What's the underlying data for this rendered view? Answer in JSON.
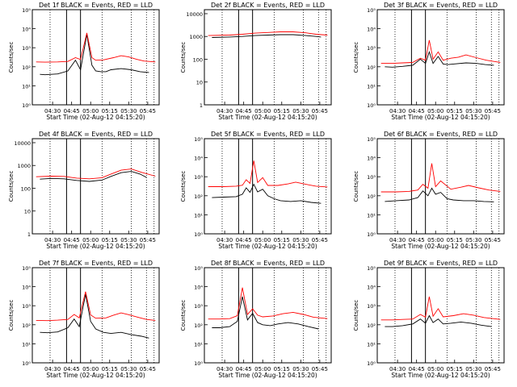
{
  "chart_data": [
    {
      "type": "line",
      "title": "Det 1f BLACK = Events, RED = LLD",
      "xlabel": "Start Time (02-Aug-12 04:15:20)",
      "ylabel": "Counts/sec",
      "scale": "log",
      "ylim": [
        1,
        100000
      ],
      "yticks": [
        "10⁰",
        "10¹",
        "10²",
        "10³",
        "10⁴",
        "10⁵"
      ],
      "xticks": [
        "04:30",
        "04:45",
        "05:00",
        "05:15",
        "05:30",
        "05:45"
      ],
      "series": [
        {
          "color": "#000000",
          "x": [
            0.06,
            0.1,
            0.2,
            0.28,
            0.34,
            0.38,
            0.43,
            0.47,
            0.5,
            0.54,
            0.58,
            0.62,
            0.7,
            0.78,
            0.85,
            0.92
          ],
          "values": [
            40,
            38,
            42,
            60,
            220,
            70,
            5000,
            120,
            60,
            55,
            55,
            70,
            80,
            70,
            55,
            50
          ]
        },
        {
          "color": "#ff0000",
          "x": [
            0.03,
            0.1,
            0.2,
            0.28,
            0.34,
            0.38,
            0.43,
            0.47,
            0.5,
            0.56,
            0.64,
            0.7,
            0.76,
            0.82,
            0.88,
            0.97
          ],
          "values": [
            180,
            175,
            180,
            190,
            300,
            240,
            6000,
            300,
            220,
            230,
            300,
            380,
            330,
            250,
            200,
            180
          ]
        }
      ]
    },
    {
      "type": "line",
      "title": "Det 2f BLACK = Events, RED = LLD",
      "xlabel": "Start Time (02-Aug-12 04:15:20)",
      "ylabel": "Counts/sec",
      "scale": "log",
      "ylim": [
        1,
        15000
      ],
      "yticks": [
        "1",
        "10",
        "100",
        "1000",
        "10000"
      ],
      "xticks": [
        "04:30",
        "04:45",
        "05:00",
        "05:15",
        "05:30",
        "05:45"
      ],
      "series": [
        {
          "color": "#000000",
          "x": [
            0.06,
            0.2,
            0.3,
            0.4,
            0.5,
            0.6,
            0.7,
            0.8,
            0.88,
            0.92
          ],
          "values": [
            900,
            950,
            1000,
            1100,
            1150,
            1200,
            1200,
            1100,
            1000,
            950
          ]
        },
        {
          "color": "#ff0000",
          "x": [
            0.03,
            0.2,
            0.3,
            0.4,
            0.5,
            0.6,
            0.7,
            0.8,
            0.88,
            0.97
          ],
          "values": [
            1100,
            1150,
            1250,
            1400,
            1500,
            1600,
            1600,
            1450,
            1250,
            1150
          ]
        }
      ]
    },
    {
      "type": "line",
      "title": "Det 3f BLACK = Events, RED = LLD",
      "xlabel": "Start Time (02-Aug-12 04:15:20)",
      "ylabel": "Counts/sec",
      "scale": "log",
      "ylim": [
        1,
        100000
      ],
      "yticks": [
        "10⁰",
        "10¹",
        "10²",
        "10³",
        "10⁴",
        "10⁵"
      ],
      "xticks": [
        "04:30",
        "04:45",
        "05:00",
        "05:15",
        "05:30",
        "05:45"
      ],
      "series": [
        {
          "color": "#000000",
          "x": [
            0.06,
            0.12,
            0.2,
            0.28,
            0.34,
            0.38,
            0.41,
            0.44,
            0.48,
            0.52,
            0.56,
            0.6,
            0.7,
            0.78,
            0.85,
            0.92
          ],
          "values": [
            100,
            95,
            105,
            120,
            250,
            150,
            600,
            150,
            350,
            140,
            130,
            140,
            160,
            150,
            130,
            120
          ]
        },
        {
          "color": "#ff0000",
          "x": [
            0.03,
            0.12,
            0.2,
            0.28,
            0.34,
            0.38,
            0.41,
            0.44,
            0.48,
            0.52,
            0.58,
            0.64,
            0.7,
            0.78,
            0.86,
            0.97
          ],
          "values": [
            150,
            150,
            160,
            170,
            280,
            220,
            2500,
            250,
            600,
            220,
            280,
            320,
            420,
            300,
            220,
            170
          ]
        }
      ]
    },
    {
      "type": "line",
      "title": "Det 4f BLACK = Events, RED = LLD",
      "xlabel": "Start Time (02-Aug-12 04:15:20)",
      "ylabel": "Counts/sec",
      "scale": "log",
      "ylim": [
        1,
        15000
      ],
      "yticks": [
        "1",
        "10",
        "100",
        "1000",
        "10000"
      ],
      "xticks": [
        "04:30",
        "04:45",
        "05:00",
        "05:15",
        "05:30",
        "05:45"
      ],
      "series": [
        {
          "color": "#000000",
          "x": [
            0.06,
            0.15,
            0.25,
            0.35,
            0.45,
            0.55,
            0.62,
            0.7,
            0.78,
            0.85,
            0.9
          ],
          "values": [
            250,
            270,
            260,
            220,
            200,
            230,
            330,
            480,
            550,
            420,
            300
          ]
        },
        {
          "color": "#ff0000",
          "x": [
            0.03,
            0.15,
            0.25,
            0.35,
            0.45,
            0.55,
            0.62,
            0.7,
            0.78,
            0.86,
            0.97
          ],
          "values": [
            320,
            340,
            330,
            280,
            260,
            290,
            420,
            620,
            700,
            500,
            340
          ]
        }
      ]
    },
    {
      "type": "line",
      "title": "Det 5f BLACK = Events, RED = LLD",
      "xlabel": "Start Time (02-Aug-12 04:15:20)",
      "ylabel": "Counts/sec",
      "scale": "log",
      "ylim": [
        1,
        100000
      ],
      "yticks": [
        "10⁰",
        "10¹",
        "10²",
        "10³",
        "10⁴",
        "10⁵"
      ],
      "xticks": [
        "04:30",
        "04:45",
        "05:00",
        "05:15",
        "05:30",
        "05:45"
      ],
      "series": [
        {
          "color": "#000000",
          "x": [
            0.06,
            0.15,
            0.25,
            0.3,
            0.33,
            0.36,
            0.39,
            0.42,
            0.46,
            0.5,
            0.55,
            0.6,
            0.68,
            0.76,
            0.84,
            0.92
          ],
          "values": [
            80,
            85,
            90,
            120,
            260,
            150,
            400,
            160,
            220,
            100,
            70,
            55,
            50,
            55,
            45,
            40
          ]
        },
        {
          "color": "#ff0000",
          "x": [
            0.03,
            0.15,
            0.25,
            0.3,
            0.33,
            0.36,
            0.39,
            0.42,
            0.46,
            0.5,
            0.58,
            0.66,
            0.72,
            0.8,
            0.88,
            0.97
          ],
          "values": [
            300,
            300,
            320,
            360,
            700,
            450,
            7000,
            500,
            900,
            350,
            350,
            420,
            520,
            400,
            320,
            290
          ]
        }
      ]
    },
    {
      "type": "line",
      "title": "Det 6f BLACK = Events, RED = LLD",
      "xlabel": "Start Time (02-Aug-12 04:15:20)",
      "ylabel": "Counts/sec",
      "scale": "log",
      "ylim": [
        1,
        100000
      ],
      "yticks": [
        "10⁰",
        "10¹",
        "10²",
        "10³",
        "10⁴",
        "10⁵"
      ],
      "xticks": [
        "04:30",
        "04:45",
        "05:00",
        "05:15",
        "05:30",
        "05:45"
      ],
      "series": [
        {
          "color": "#000000",
          "x": [
            0.06,
            0.15,
            0.25,
            0.32,
            0.36,
            0.4,
            0.43,
            0.46,
            0.5,
            0.55,
            0.6,
            0.68,
            0.76,
            0.84,
            0.92
          ],
          "values": [
            50,
            55,
            60,
            80,
            180,
            100,
            250,
            120,
            150,
            70,
            60,
            55,
            55,
            50,
            48
          ]
        },
        {
          "color": "#ff0000",
          "x": [
            0.03,
            0.15,
            0.25,
            0.32,
            0.36,
            0.4,
            0.43,
            0.46,
            0.5,
            0.58,
            0.66,
            0.72,
            0.8,
            0.88,
            0.97
          ],
          "values": [
            160,
            160,
            170,
            200,
            400,
            250,
            5000,
            300,
            600,
            220,
            280,
            350,
            260,
            200,
            170
          ]
        }
      ]
    },
    {
      "type": "line",
      "title": "Det 7f BLACK = Events, RED = LLD",
      "xlabel": "Start Time (02-Aug-12 04:15:20)",
      "ylabel": "Counts/sec",
      "scale": "log",
      "ylim": [
        1,
        100000
      ],
      "yticks": [
        "10⁰",
        "10¹",
        "10²",
        "10³",
        "10⁴",
        "10⁵"
      ],
      "xticks": [
        "04:30",
        "04:45",
        "05:00",
        "05:15",
        "05:30",
        "05:45"
      ],
      "series": [
        {
          "color": "#000000",
          "x": [
            0.06,
            0.12,
            0.2,
            0.28,
            0.33,
            0.37,
            0.42,
            0.46,
            0.5,
            0.56,
            0.62,
            0.7,
            0.78,
            0.86,
            0.92
          ],
          "values": [
            40,
            38,
            42,
            70,
            200,
            80,
            4000,
            150,
            60,
            40,
            35,
            40,
            30,
            25,
            20
          ]
        },
        {
          "color": "#ff0000",
          "x": [
            0.03,
            0.12,
            0.2,
            0.28,
            0.33,
            0.37,
            0.42,
            0.46,
            0.5,
            0.58,
            0.64,
            0.7,
            0.76,
            0.84,
            0.9,
            0.97
          ],
          "values": [
            170,
            165,
            175,
            190,
            350,
            230,
            5500,
            330,
            220,
            230,
            320,
            420,
            340,
            240,
            190,
            170
          ]
        }
      ]
    },
    {
      "type": "line",
      "title": "Det 8f BLACK = Events, RED = LLD",
      "xlabel": "Start Time (02-Aug-12 04:15:20)",
      "ylabel": "Counts/sec",
      "scale": "log",
      "ylim": [
        1,
        100000
      ],
      "yticks": [
        "10⁰",
        "10¹",
        "10²",
        "10³",
        "10⁴",
        "10⁵"
      ],
      "xticks": [
        "04:30",
        "04:45",
        "05:00",
        "05:15",
        "05:30",
        "05:45"
      ],
      "series": [
        {
          "color": "#000000",
          "x": [
            0.06,
            0.12,
            0.2,
            0.26,
            0.3,
            0.34,
            0.38,
            0.42,
            0.46,
            0.52,
            0.58,
            0.66,
            0.74,
            0.82,
            0.9
          ],
          "values": [
            70,
            70,
            80,
            150,
            3000,
            180,
            400,
            130,
            100,
            90,
            110,
            130,
            110,
            80,
            60
          ]
        },
        {
          "color": "#ff0000",
          "x": [
            0.03,
            0.12,
            0.2,
            0.26,
            0.3,
            0.34,
            0.38,
            0.42,
            0.46,
            0.54,
            0.62,
            0.7,
            0.78,
            0.86,
            0.97
          ],
          "values": [
            200,
            200,
            210,
            300,
            9000,
            350,
            700,
            320,
            260,
            290,
            380,
            450,
            350,
            250,
            210
          ]
        }
      ]
    },
    {
      "type": "line",
      "title": "Det 9f BLACK = Events, RED = LLD",
      "xlabel": "Start Time (02-Aug-12 04:15:20)",
      "ylabel": "Counts/sec",
      "scale": "log",
      "ylim": [
        1,
        100000
      ],
      "yticks": [
        "10⁰",
        "10¹",
        "10²",
        "10³",
        "10⁴",
        "10⁵"
      ],
      "xticks": [
        "04:30",
        "04:45",
        "05:00",
        "05:15",
        "05:30",
        "05:45"
      ],
      "series": [
        {
          "color": "#000000",
          "x": [
            0.06,
            0.12,
            0.2,
            0.28,
            0.34,
            0.38,
            0.41,
            0.44,
            0.48,
            0.52,
            0.58,
            0.66,
            0.74,
            0.82,
            0.9
          ],
          "values": [
            80,
            80,
            90,
            110,
            200,
            120,
            300,
            130,
            200,
            110,
            120,
            140,
            120,
            95,
            80
          ]
        },
        {
          "color": "#ff0000",
          "x": [
            0.03,
            0.12,
            0.2,
            0.28,
            0.34,
            0.38,
            0.41,
            0.44,
            0.48,
            0.52,
            0.6,
            0.68,
            0.76,
            0.84,
            0.97
          ],
          "values": [
            180,
            180,
            190,
            200,
            350,
            250,
            3000,
            280,
            700,
            260,
            300,
            380,
            320,
            240,
            190
          ]
        }
      ]
    }
  ]
}
